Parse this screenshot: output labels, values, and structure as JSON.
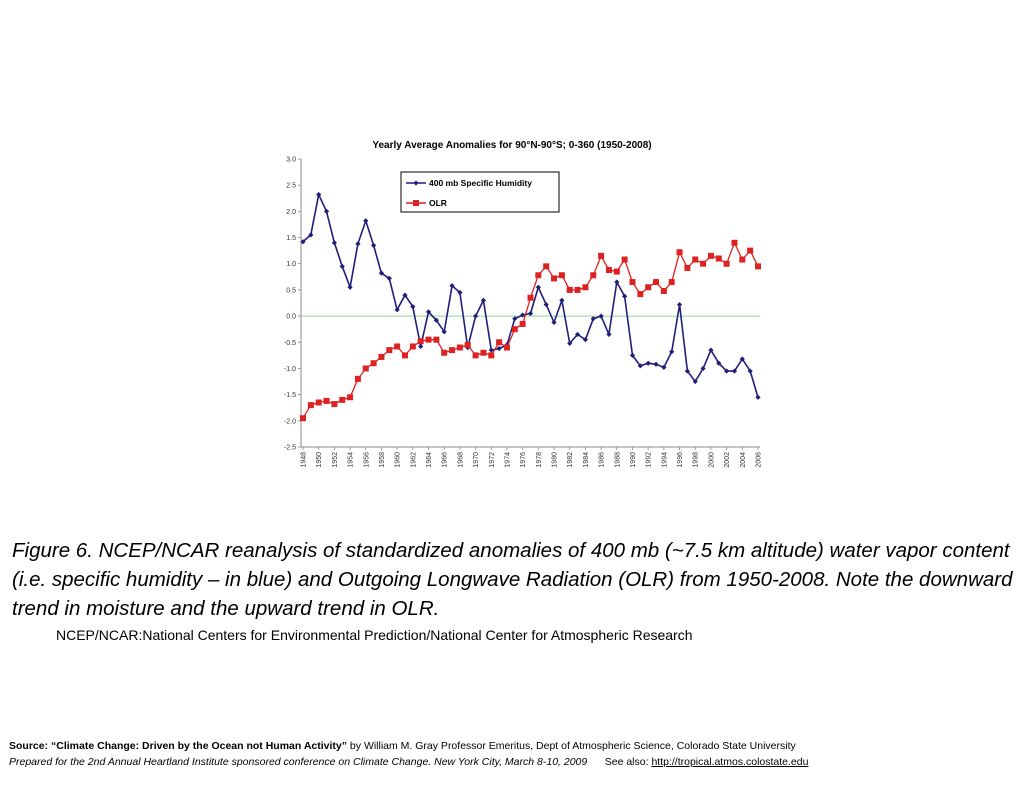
{
  "chart_data": {
    "type": "line",
    "title": "Yearly Average Anomalies for 90°N-90°S; 0-360 (1950-2008)",
    "x": [
      1948,
      1949,
      1950,
      1951,
      1952,
      1953,
      1954,
      1955,
      1956,
      1957,
      1958,
      1959,
      1960,
      1961,
      1962,
      1963,
      1964,
      1965,
      1966,
      1967,
      1968,
      1969,
      1970,
      1971,
      1972,
      1973,
      1974,
      1975,
      1976,
      1977,
      1978,
      1979,
      1980,
      1981,
      1982,
      1983,
      1984,
      1985,
      1986,
      1987,
      1988,
      1989,
      1990,
      1991,
      1992,
      1993,
      1994,
      1995,
      1996,
      1997,
      1998,
      1999,
      2000,
      2001,
      2002,
      2003,
      2004,
      2005,
      2006
    ],
    "xticks": [
      "1948",
      "1950",
      "1952",
      "1954",
      "1956",
      "1958",
      "1960",
      "1962",
      "1964",
      "1966",
      "1968",
      "1970",
      "1972",
      "1974",
      "1976",
      "1978",
      "1980",
      "1982",
      "1984",
      "1986",
      "1988",
      "1990",
      "1992",
      "1994",
      "1996",
      "1998",
      "2000",
      "2002",
      "2004",
      "2006"
    ],
    "yticks": [
      "3.0",
      "2.5",
      "2.0",
      "1.5",
      "1.0",
      "0.5",
      "0.0",
      "-0.5",
      "-1.0",
      "-1.5",
      "-2.0",
      "-2.5"
    ],
    "ylim": [
      -2.5,
      3.0
    ],
    "legend_position": "top-center",
    "reference_line": 0,
    "series": [
      {
        "name": "400 mb Specific Humidity",
        "color": "#1f1f7a",
        "marker": "diamond",
        "values": [
          1.42,
          1.55,
          2.32,
          2.0,
          1.4,
          0.95,
          0.55,
          1.38,
          1.82,
          1.35,
          0.82,
          0.72,
          0.12,
          0.4,
          0.18,
          -0.58,
          0.08,
          -0.08,
          -0.3,
          0.58,
          0.45,
          -0.6,
          0.0,
          0.3,
          -0.65,
          -0.62,
          -0.55,
          -0.05,
          0.02,
          0.05,
          0.55,
          0.22,
          -0.12,
          0.3,
          -0.52,
          -0.35,
          -0.45,
          -0.05,
          0.0,
          -0.35,
          0.65,
          0.38,
          -0.75,
          -0.95,
          -0.9,
          -0.92,
          -0.98,
          -0.68,
          0.22,
          -1.05,
          -1.25,
          -1.0,
          -0.65,
          -0.9,
          -1.05,
          -1.05,
          -0.82,
          -1.05,
          -1.55
        ]
      },
      {
        "name": "OLR",
        "color": "#dd2222",
        "marker": "square",
        "values": [
          -1.95,
          -1.7,
          -1.65,
          -1.62,
          -1.68,
          -1.6,
          -1.55,
          -1.2,
          -1.0,
          -0.9,
          -0.78,
          -0.65,
          -0.58,
          -0.75,
          -0.58,
          -0.48,
          -0.45,
          -0.45,
          -0.7,
          -0.65,
          -0.6,
          -0.55,
          -0.75,
          -0.7,
          -0.75,
          -0.5,
          -0.6,
          -0.25,
          -0.15,
          0.35,
          0.78,
          0.95,
          0.72,
          0.78,
          0.5,
          0.5,
          0.55,
          0.78,
          1.15,
          0.88,
          0.85,
          1.08,
          0.65,
          0.42,
          0.55,
          0.65,
          0.48,
          0.65,
          1.22,
          0.92,
          1.08,
          1.0,
          1.15,
          1.1,
          1.0,
          1.4,
          1.08,
          1.25,
          0.95
        ]
      }
    ]
  },
  "caption": {
    "text": "Figure 6.  NCEP/NCAR reanalysis of standardized anomalies of 400 mb (~7.5 km altitude) water vapor content (i.e. specific humidity – in blue) and Outgoing Longwave Radiation (OLR) from 1950-2008.  Note the downward trend in moisture and the upward trend in OLR.",
    "subtext": "NCEP/NCAR:National Centers for Environmental Prediction/National Center for Atmospheric Research"
  },
  "source": {
    "label": "Source: “Climate Change: Driven by the Ocean not Human Activity”",
    "author": " by William M. Gray Professor Emeritus, Dept of Atmospheric Science, Colorado State University",
    "prepared": "Prepared for the 2nd Annual Heartland Institute sponsored conference on Climate Change. New York City, March 8-10, 2009",
    "see_also": "      See also: ",
    "link": "http://tropical.atmos.colostate.edu "
  }
}
